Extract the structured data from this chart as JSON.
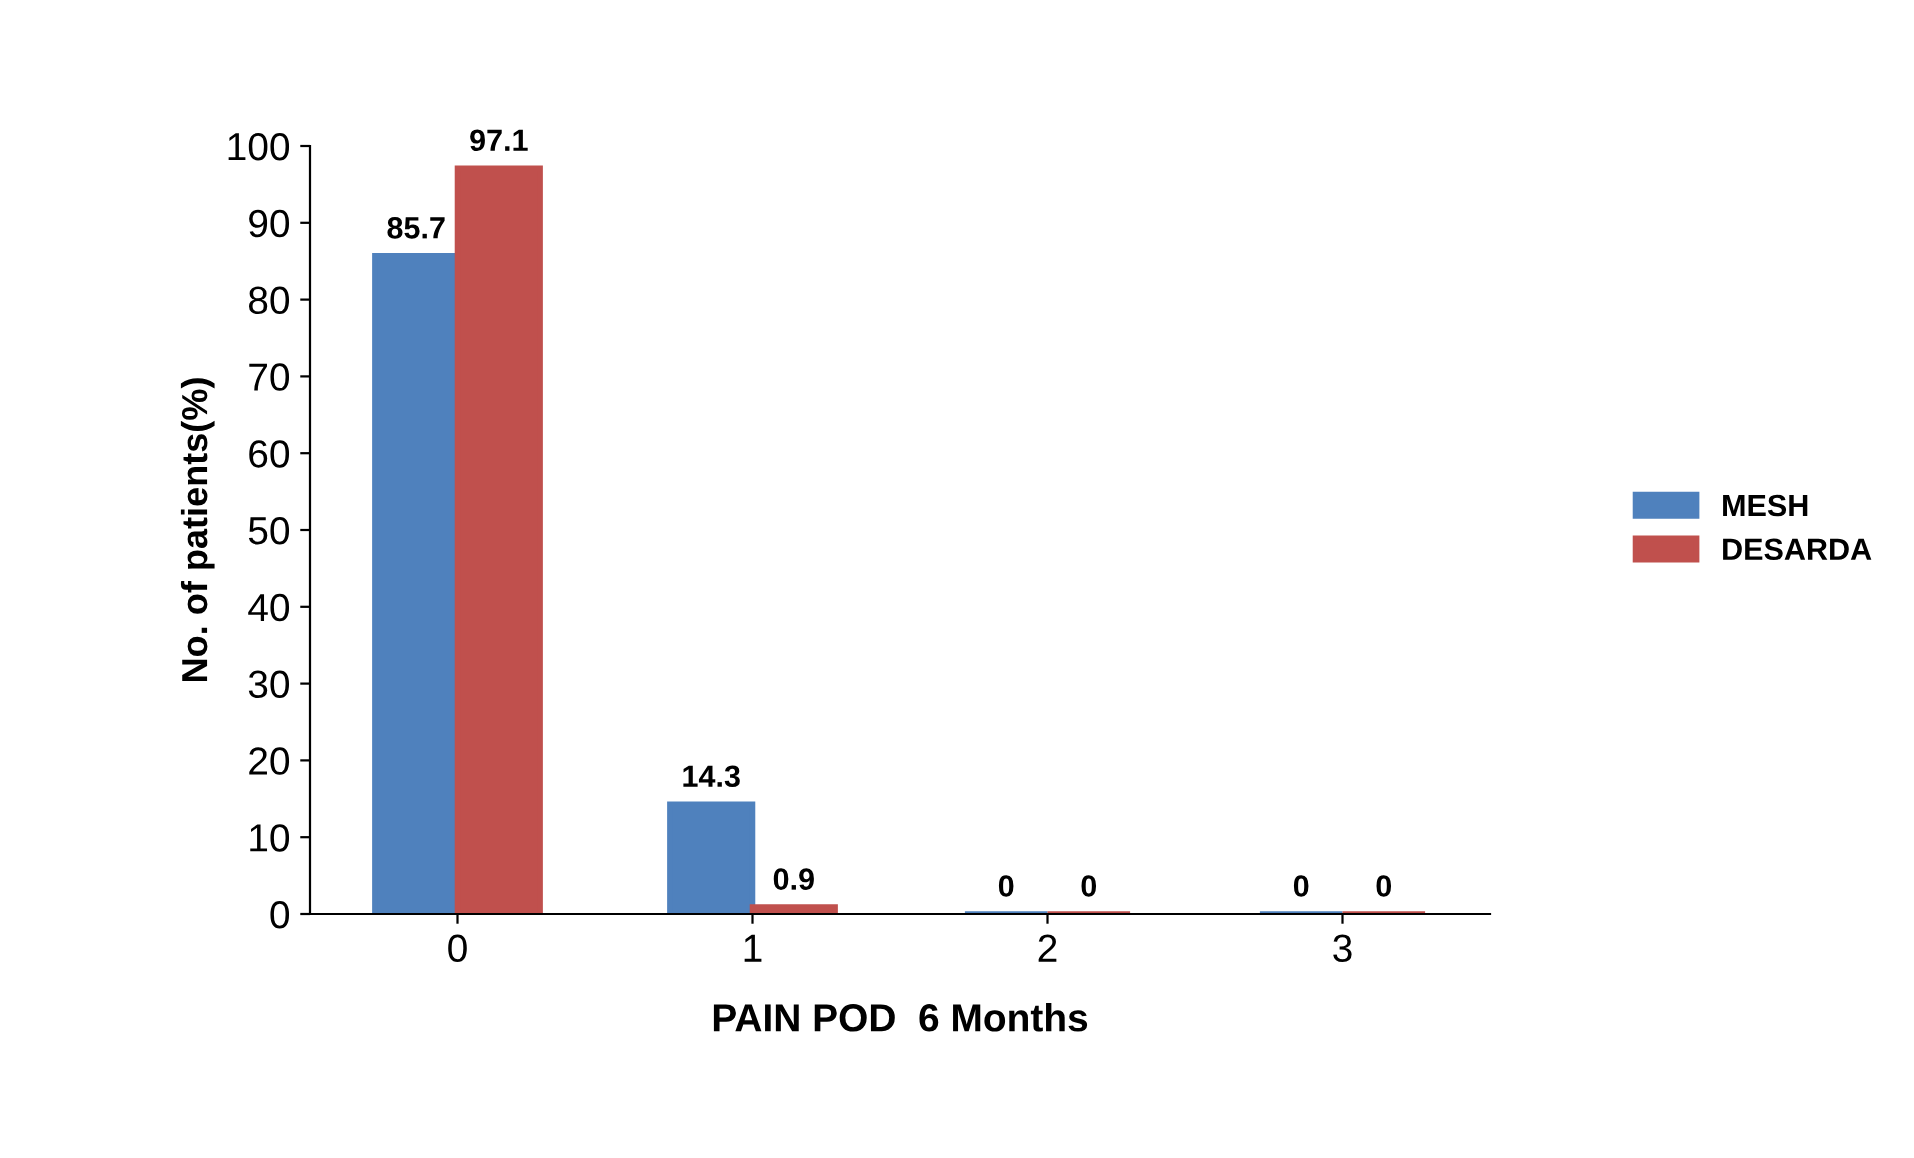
{
  "chart_data": {
    "type": "bar",
    "xlabel": "PAIN POD  6 Months",
    "ylabel": "No. of patients(%)",
    "categories": [
      "0",
      "1",
      "2",
      "3"
    ],
    "series": [
      {
        "name": "MESH",
        "color": "#4f81bd",
        "values": [
          85.7,
          14.3,
          0,
          0
        ]
      },
      {
        "name": "DESARDA",
        "color": "#c0504d",
        "values": [
          97.1,
          0.9,
          0,
          0
        ]
      }
    ],
    "ylim": [
      0,
      100
    ],
    "yticks": [
      0,
      10,
      20,
      30,
      40,
      50,
      60,
      70,
      80,
      90,
      100
    ],
    "data_labels": true,
    "legend": "right",
    "grid": false
  }
}
